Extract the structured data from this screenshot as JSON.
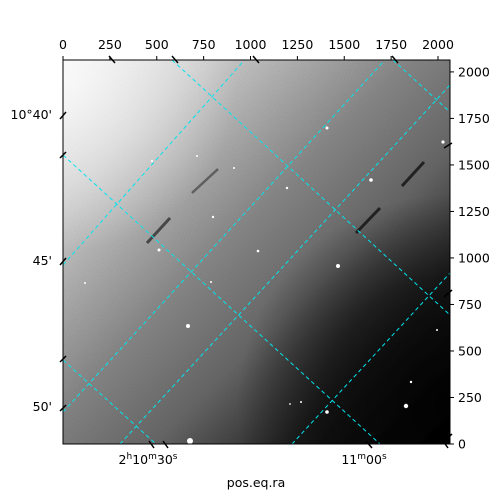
{
  "figure": {
    "xlabel": "pos.eq.ra",
    "image_description_colormap": "grayscale",
    "grid_color": "#00e5ee"
  },
  "pixel_axes": {
    "x_ticks": [
      "0",
      "250",
      "500",
      "750",
      "1000",
      "1250",
      "1500",
      "1750",
      "2000"
    ],
    "x_tick_values": [
      0,
      250,
      500,
      750,
      1000,
      1250,
      1500,
      1750,
      2000
    ],
    "x_range": [
      0,
      2064
    ],
    "y_ticks": [
      "0",
      "250",
      "500",
      "750",
      "1000",
      "1250",
      "1500",
      "1750",
      "2000"
    ],
    "y_tick_values": [
      0,
      250,
      500,
      750,
      1000,
      1250,
      1500,
      1750,
      2000
    ],
    "y_range": [
      0,
      2064
    ]
  },
  "world_axes": {
    "dec_labels": [
      {
        "id": "dec-40",
        "text": "10°40'"
      },
      {
        "id": "dec-45",
        "text": "45'"
      },
      {
        "id": "dec-50",
        "text": "50'"
      }
    ],
    "ra_labels": [
      {
        "id": "ra-1030",
        "h": "2",
        "hs": "h",
        "m": "10",
        "ms": "m",
        "s": "30",
        "ss": "s"
      },
      {
        "id": "ra-1100",
        "m": "11",
        "ms": "m",
        "s": "00",
        "ss": "s"
      }
    ]
  }
}
